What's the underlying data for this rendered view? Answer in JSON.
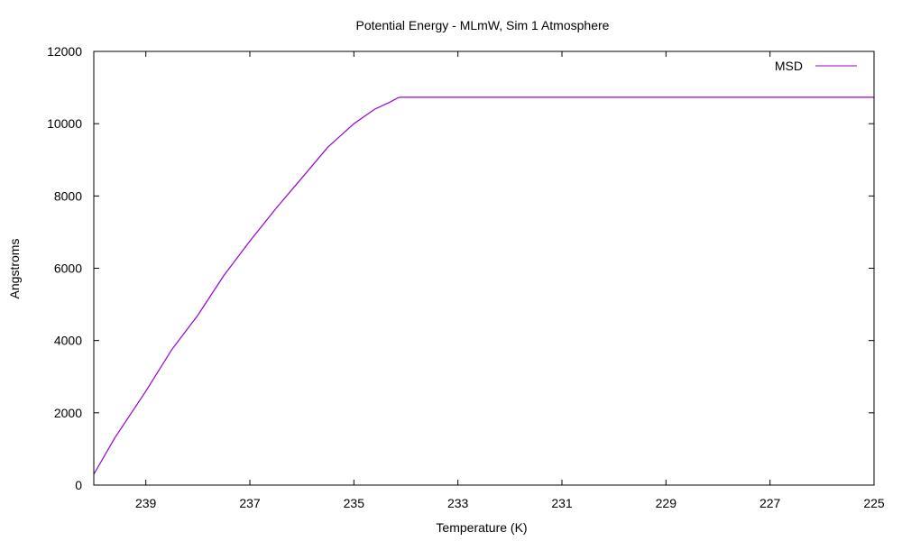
{
  "chart_data": {
    "type": "line",
    "title": "Potential Energy - MLmW, Sim 1 Atmosphere",
    "xlabel": "Temperature (K)",
    "ylabel": "Angstroms",
    "xlim": [
      240.0,
      225.0
    ],
    "ylim": [
      0,
      12000
    ],
    "x_ticks": [
      239,
      237,
      235,
      233,
      231,
      229,
      227,
      225
    ],
    "x_tick_labels": [
      "239",
      "237",
      "235",
      "233",
      "231",
      "229",
      "227",
      "225"
    ],
    "y_ticks": [
      0,
      2000,
      4000,
      6000,
      8000,
      10000,
      12000
    ],
    "y_tick_labels": [
      "0",
      "2000",
      "4000",
      "6000",
      "8000",
      "10000",
      "12000"
    ],
    "grid": false,
    "legend_position": "top-right",
    "series": [
      {
        "name": "MSD",
        "color": "#9400d3",
        "x": [
          240.0,
          239.6,
          239.0,
          238.5,
          238.0,
          237.5,
          237.0,
          236.5,
          236.0,
          235.5,
          235.0,
          234.6,
          234.3,
          234.15,
          234.1,
          233.6,
          233.1,
          232.5,
          231.0,
          229.0,
          227.0,
          225.0
        ],
        "y": [
          300,
          1300,
          2600,
          3750,
          4700,
          5800,
          6750,
          7650,
          8500,
          9350,
          10000,
          10400,
          10600,
          10720,
          10730,
          10730,
          10730,
          10730,
          10730,
          10730,
          10730,
          10730
        ]
      }
    ]
  }
}
